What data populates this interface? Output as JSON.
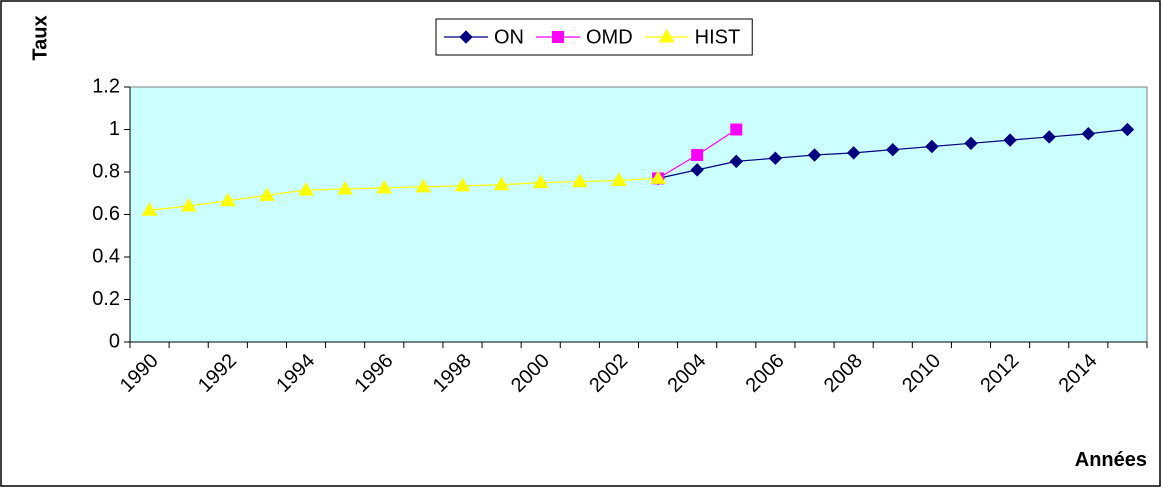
{
  "chart_data": {
    "type": "line",
    "y_label": "Taux",
    "x_label": "Années",
    "categories": [
      "1990",
      null,
      "1992",
      null,
      "1994",
      null,
      "1996",
      null,
      "1998",
      null,
      "2000",
      null,
      "2002",
      null,
      "2004",
      null,
      "2006",
      null,
      "2008",
      null,
      "2010",
      null,
      "2012",
      null,
      "2014",
      null
    ],
    "series": [
      {
        "name": "ON",
        "color": "#000080",
        "marker": "diamond",
        "values": [
          null,
          null,
          null,
          null,
          null,
          null,
          null,
          null,
          null,
          null,
          null,
          null,
          null,
          0.77,
          0.81,
          0.85,
          0.865,
          0.88,
          0.89,
          0.905,
          0.92,
          0.935,
          0.95,
          0.965,
          0.98,
          1.0
        ]
      },
      {
        "name": "OMD",
        "color": "#ff00ff",
        "marker": "square",
        "values": [
          null,
          null,
          null,
          null,
          null,
          null,
          null,
          null,
          null,
          null,
          null,
          null,
          null,
          0.77,
          0.88,
          1.0,
          null,
          null,
          null,
          null,
          null,
          null,
          null,
          null,
          null,
          null
        ]
      },
      {
        "name": "HIST",
        "color": "#ffff00",
        "marker": "triangle",
        "values": [
          0.62,
          0.64,
          0.665,
          0.69,
          0.715,
          0.72,
          0.725,
          0.73,
          0.735,
          0.74,
          0.75,
          0.755,
          0.76,
          0.77,
          null,
          null,
          null,
          null,
          null,
          null,
          null,
          null,
          null,
          null,
          null,
          null
        ]
      }
    ],
    "ylim": [
      0,
      1.2
    ],
    "yticks": [
      0,
      0.2,
      0.4,
      0.6,
      0.8,
      1,
      1.2
    ],
    "plot_background": "#ccffff",
    "legend": "top"
  }
}
